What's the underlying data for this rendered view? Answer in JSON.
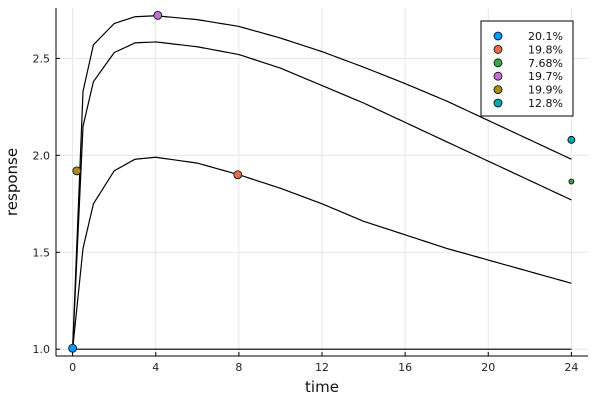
{
  "chart_data": {
    "type": "line",
    "title": "",
    "xlabel": "time",
    "ylabel": "response",
    "xlim": [
      -0.8,
      24.8
    ],
    "ylim": [
      0.965,
      2.76
    ],
    "xticks": [
      0,
      4,
      8,
      12,
      16,
      20,
      24
    ],
    "yticks": [
      1.0,
      1.5,
      2.0,
      2.5
    ],
    "ytick_labels": [
      "1.0",
      "1.5",
      "2.0",
      "2.5"
    ],
    "grid": true,
    "legend_position": "top-right",
    "curves": [
      {
        "x": [
          0,
          0.5,
          1,
          2,
          3,
          4,
          6,
          8,
          10,
          12,
          14,
          16,
          18,
          20,
          22,
          24
        ],
        "y": [
          1.0,
          2.33,
          2.57,
          2.68,
          2.715,
          2.72,
          2.7,
          2.665,
          2.605,
          2.535,
          2.455,
          2.37,
          2.28,
          2.18,
          2.08,
          1.98
        ]
      },
      {
        "x": [
          0,
          0.5,
          1,
          2,
          3,
          4,
          6,
          8,
          10,
          12,
          14,
          16,
          18,
          20,
          22,
          24
        ],
        "y": [
          1.0,
          2.15,
          2.38,
          2.53,
          2.58,
          2.585,
          2.56,
          2.52,
          2.45,
          2.36,
          2.27,
          2.17,
          2.07,
          1.97,
          1.87,
          1.77
        ]
      },
      {
        "x": [
          0,
          0.5,
          1,
          2,
          3,
          4,
          6,
          8,
          10,
          12,
          14,
          16,
          18,
          20,
          22,
          24
        ],
        "y": [
          1.0,
          1.52,
          1.75,
          1.92,
          1.98,
          1.99,
          1.96,
          1.9,
          1.83,
          1.75,
          1.66,
          1.59,
          1.52,
          1.46,
          1.4,
          1.34
        ]
      },
      {
        "x": [
          0,
          24
        ],
        "y": [
          1.0,
          1.0
        ]
      }
    ],
    "points": [
      {
        "name": "20.1%",
        "color": "#009af9",
        "x": 0.0,
        "y": 1.005,
        "r": 4
      },
      {
        "name": "19.8%",
        "color": "#e26f46",
        "x": 7.95,
        "y": 1.9,
        "r": 4
      },
      {
        "name": "7.68%",
        "color": "#3da44d",
        "x": 24.0,
        "y": 1.865,
        "r": 2.5
      },
      {
        "name": "19.7%",
        "color": "#c271d2",
        "x": 4.1,
        "y": 2.722,
        "r": 4
      },
      {
        "name": "19.9%",
        "color": "#ac8d18",
        "x": 0.2,
        "y": 1.92,
        "r": 4
      },
      {
        "name": "12.8%",
        "color": "#00a9ad",
        "x": 24.0,
        "y": 2.08,
        "r": 3.5
      }
    ]
  }
}
